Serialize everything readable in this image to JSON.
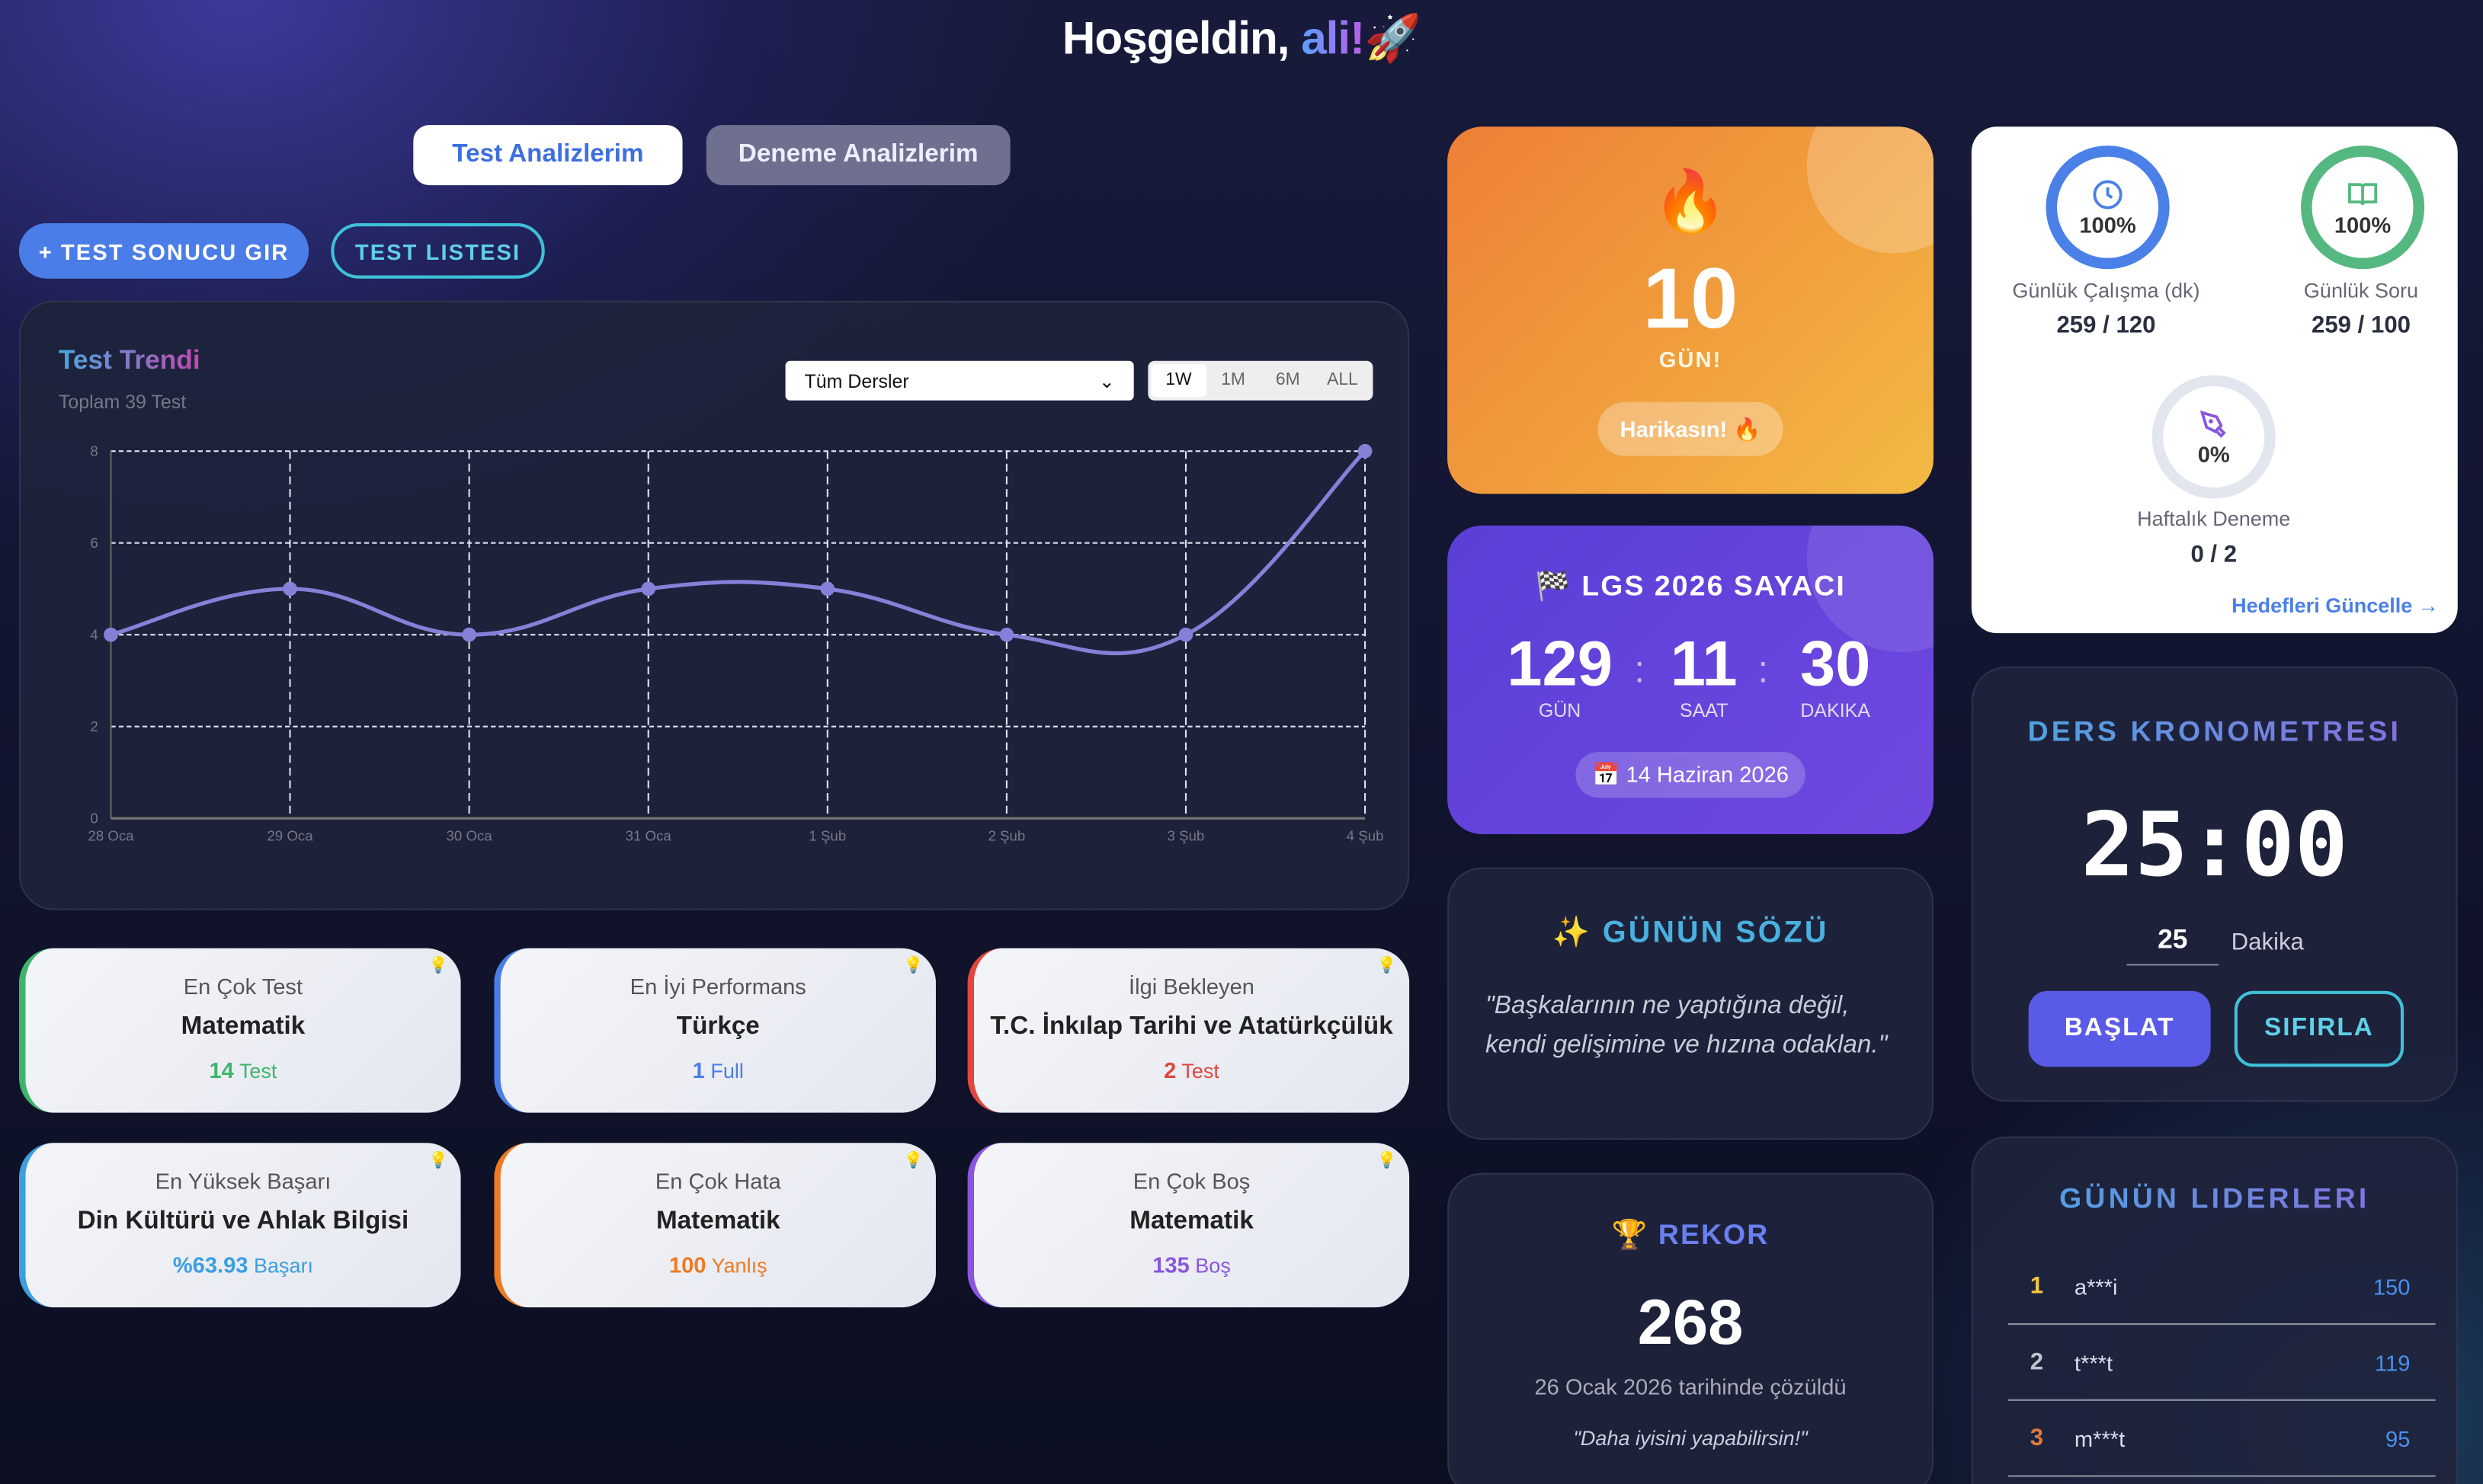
{
  "header": {
    "greeting": "Hoşgeldin,",
    "name": "ali!",
    "emoji": "🚀"
  },
  "tabs": [
    {
      "label": "Test Analizlerim",
      "active": true
    },
    {
      "label": "Deneme Analizlerim",
      "active": false
    }
  ],
  "actions": {
    "add_result": "+ TEST SONUCU GIR",
    "test_list": "TEST LISTESI"
  },
  "trend": {
    "title": "Test Trendi",
    "subtitle": "Toplam 39 Test",
    "select_value": "Tüm Dersler",
    "ranges": [
      "1W",
      "1M",
      "6M",
      "ALL"
    ],
    "active_range": "1W"
  },
  "chart_data": {
    "type": "line",
    "categories": [
      "28 Oca",
      "29 Oca",
      "30 Oca",
      "31 Oca",
      "1 Şub",
      "2 Şub",
      "3 Şub",
      "4 Şub"
    ],
    "values": [
      4,
      5,
      4,
      5,
      5,
      4,
      4,
      8
    ],
    "yticks": [
      0,
      2,
      4,
      6,
      8
    ],
    "ylim": [
      0,
      8
    ],
    "grid": true,
    "color": "#8680d8"
  },
  "stats": [
    {
      "label": "En Çok Test",
      "value": "Matematik",
      "num": "14",
      "unit": "Test",
      "color": "#3fb56b"
    },
    {
      "label": "En İyi Performans",
      "value": "Türkçe",
      "num": "1",
      "unit": "Full",
      "color": "#4a7de8"
    },
    {
      "label": "İlgi Bekleyen",
      "value": "T.C. İnkılap Tarihi ve Atatürkçülük",
      "num": "2",
      "unit": "Test",
      "color": "#e0473f"
    },
    {
      "label": "En Yüksek Başarı",
      "value": "Din Kültürü ve Ahlak Bilgisi",
      "num": "%63.93",
      "unit": "Başarı",
      "color": "#3d9ee0"
    },
    {
      "label": "En Çok Hata",
      "value": "Matematik",
      "num": "100",
      "unit": "Yanlış",
      "color": "#ee7a22"
    },
    {
      "label": "En Çok Boş",
      "value": "Matematik",
      "num": "135",
      "unit": "Boş",
      "color": "#8a55e0"
    }
  ],
  "streak": {
    "days": "10",
    "label": "GÜN!",
    "badge": "Harikasın! 🔥"
  },
  "countdown": {
    "title": "🏁 LGS 2026 SAYACI",
    "days": "129",
    "days_label": "GÜN",
    "hours": "11",
    "hours_label": "SAAT",
    "minutes": "30",
    "minutes_label": "DAKIKA",
    "date": "📅 14 Haziran 2026"
  },
  "quote": {
    "title": "✨ GÜNÜN SÖZÜ",
    "text": "\"Başkalarının ne yaptığına değil, kendi gelişimine ve hızına odaklan.\""
  },
  "record": {
    "title": "🏆 REKOR",
    "value": "268",
    "date": "26 Ocak 2026 tarihinde çözüldü",
    "motto": "\"Daha iyisini yapabilirsin!\""
  },
  "goals": {
    "items": [
      {
        "label": "Günlük Çalışma (dk)",
        "value": "259 / 120",
        "percent": "100%",
        "color": "#4a80e8"
      },
      {
        "label": "Günlük Soru",
        "value": "259 / 100",
        "percent": "100%",
        "color": "#55b880"
      },
      {
        "label": "Haftalık Deneme",
        "value": "0 / 2",
        "percent": "0%",
        "color": "#8a55e0"
      }
    ],
    "update_link": "Hedefleri Güncelle →"
  },
  "timer": {
    "title": "DERS KRONOMETRESI",
    "time": "25:00",
    "minutes_input": "25",
    "minutes_label": "Dakika",
    "start": "BAŞLAT",
    "reset": "SIFIRLA"
  },
  "leaders": {
    "title": "GÜNÜN LIDERLERI",
    "rows": [
      {
        "rank": "1",
        "name": "a***i",
        "score": "150",
        "color": "#f5c542"
      },
      {
        "rank": "2",
        "name": "t***t",
        "score": "119",
        "color": "#c0c4cc"
      },
      {
        "rank": "3",
        "name": "m***t",
        "score": "95",
        "color": "#e07a3a"
      }
    ]
  }
}
